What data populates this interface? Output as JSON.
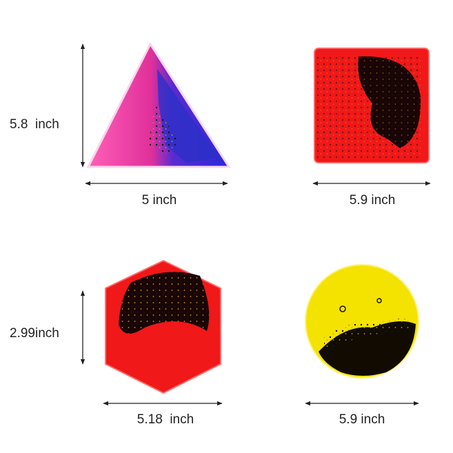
{
  "items": [
    {
      "shape": "triangle",
      "labels": [
        "5.8  inch",
        "5 inch"
      ]
    },
    {
      "shape": "square",
      "labels": [
        "5.9 inch"
      ]
    },
    {
      "shape": "hexagon",
      "labels": [
        "2.99inch",
        "5.18  inch"
      ]
    },
    {
      "shape": "circle",
      "labels": [
        "5.9 inch"
      ]
    }
  ]
}
